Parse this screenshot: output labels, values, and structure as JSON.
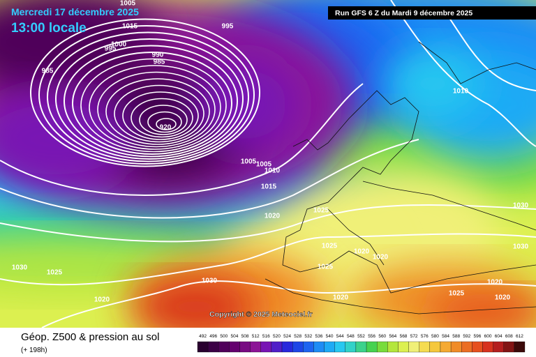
{
  "header": {
    "date": "Mercredi 17 décembre 2025",
    "time": "13:00 locale",
    "run": "Run GFS 6 Z du Mardi 9 décembre 2025"
  },
  "isobar_labels": [
    "1005",
    "1015",
    "995",
    "1000",
    "995",
    "990",
    "985",
    "985",
    "920",
    "1005",
    "1005",
    "1010",
    "1015",
    "1025",
    "1020",
    "1010",
    "1030",
    "1025",
    "1020",
    "1020",
    "1025",
    "1030",
    "1030",
    "1025",
    "1030",
    "1020",
    "1020",
    "1020",
    "1025",
    "1020"
  ],
  "copyright": "Copyright © 2025 Meteociel.fr",
  "footer": {
    "title": "Géop. Z500 & pression au sol",
    "subtitle": "(+ 198h)"
  },
  "color_scale": {
    "values": [
      492,
      496,
      500,
      504,
      508,
      512,
      516,
      520,
      524,
      528,
      532,
      536,
      540,
      544,
      548,
      552,
      556,
      560,
      564,
      568,
      572,
      576,
      580,
      584,
      588,
      592,
      596,
      600,
      604,
      608,
      612
    ],
    "colors": [
      "#2a0030",
      "#3c0046",
      "#50005a",
      "#64006e",
      "#780a82",
      "#8c1496",
      "#7814b4",
      "#501ec8",
      "#2828dc",
      "#1e46e6",
      "#1e64f0",
      "#1e8cf5",
      "#1eaaf5",
      "#28c8f0",
      "#32d2c8",
      "#3cd28c",
      "#46d250",
      "#78dc3c",
      "#b4e63c",
      "#dcf050",
      "#f0f078",
      "#f5dc50",
      "#f5c83c",
      "#f5aa32",
      "#f08c28",
      "#eb6e23",
      "#e6501e",
      "#d7321e",
      "#b41e1e",
      "#821414",
      "#3c0a0a"
    ]
  }
}
